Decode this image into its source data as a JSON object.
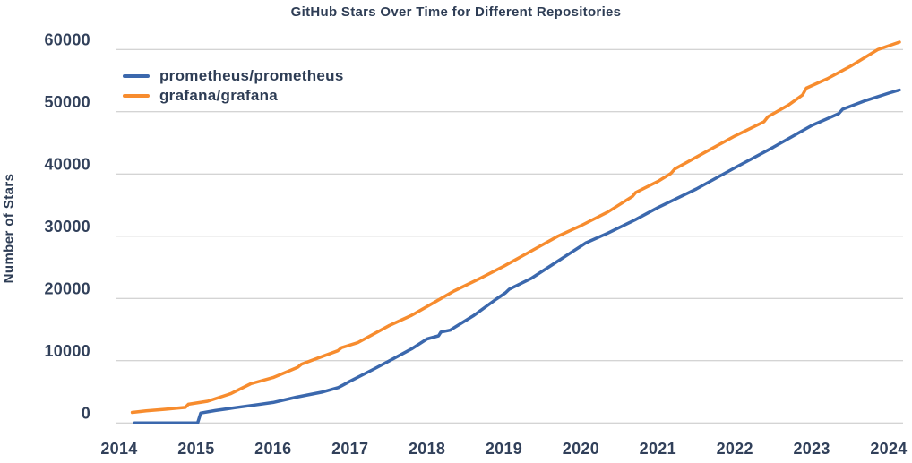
{
  "chart_data": {
    "type": "line",
    "title": "GitHub Stars Over Time for Different Repositories",
    "xlabel": "",
    "ylabel": "Number of Stars",
    "x_ticks": [
      2014,
      2015,
      2016,
      2017,
      2018,
      2019,
      2020,
      2021,
      2022,
      2023,
      2024
    ],
    "y_ticks": [
      0,
      10000,
      20000,
      30000,
      40000,
      50000,
      60000
    ],
    "x_range": [
      2014,
      2024.3
    ],
    "y_range": [
      0,
      60000
    ],
    "grid": "horizontal",
    "grid_color": "#c6c6c6",
    "legend_position": "top-left-inside",
    "text_color": "#2e3d55",
    "background_color": "#ffffff",
    "series": [
      {
        "name": "prometheus/prometheus",
        "color": "#3b68ad",
        "points": [
          [
            2014.2,
            0
          ],
          [
            2015.02,
            0
          ],
          [
            2015.06,
            1600
          ],
          [
            2015.25,
            2000
          ],
          [
            2015.5,
            2450
          ],
          [
            2015.8,
            2950
          ],
          [
            2016.0,
            3300
          ],
          [
            2016.3,
            4150
          ],
          [
            2016.65,
            5000
          ],
          [
            2016.85,
            5700
          ],
          [
            2017.0,
            6700
          ],
          [
            2017.3,
            8600
          ],
          [
            2017.53,
            10100
          ],
          [
            2017.8,
            11900
          ],
          [
            2018.0,
            13500
          ],
          [
            2018.15,
            14000
          ],
          [
            2018.18,
            14600
          ],
          [
            2018.3,
            14900
          ],
          [
            2018.6,
            17200
          ],
          [
            2018.9,
            19900
          ],
          [
            2019.02,
            20900
          ],
          [
            2019.07,
            21500
          ],
          [
            2019.35,
            23200
          ],
          [
            2019.7,
            26000
          ],
          [
            2020.0,
            28400
          ],
          [
            2020.06,
            28900
          ],
          [
            2020.35,
            30500
          ],
          [
            2020.7,
            32600
          ],
          [
            2021.0,
            34600
          ],
          [
            2021.5,
            37600
          ],
          [
            2022.0,
            41000
          ],
          [
            2022.5,
            44300
          ],
          [
            2023.0,
            47800
          ],
          [
            2023.35,
            49700
          ],
          [
            2023.4,
            50400
          ],
          [
            2023.7,
            51800
          ],
          [
            2024.0,
            53000
          ],
          [
            2024.14,
            53500
          ]
        ]
      },
      {
        "name": "grafana/grafana",
        "color": "#f78c2e",
        "points": [
          [
            2014.17,
            1700
          ],
          [
            2014.35,
            1950
          ],
          [
            2014.6,
            2200
          ],
          [
            2014.86,
            2500
          ],
          [
            2014.9,
            3000
          ],
          [
            2015.15,
            3500
          ],
          [
            2015.45,
            4700
          ],
          [
            2015.71,
            6300
          ],
          [
            2016.0,
            7300
          ],
          [
            2016.32,
            8950
          ],
          [
            2016.37,
            9450
          ],
          [
            2016.6,
            10500
          ],
          [
            2016.84,
            11600
          ],
          [
            2016.89,
            12100
          ],
          [
            2017.1,
            12900
          ],
          [
            2017.5,
            15600
          ],
          [
            2017.8,
            17300
          ],
          [
            2018.0,
            18700
          ],
          [
            2018.35,
            21200
          ],
          [
            2018.7,
            23300
          ],
          [
            2019.0,
            25200
          ],
          [
            2019.35,
            27600
          ],
          [
            2019.7,
            30000
          ],
          [
            2020.0,
            31700
          ],
          [
            2020.35,
            33900
          ],
          [
            2020.67,
            36400
          ],
          [
            2020.71,
            37000
          ],
          [
            2021.0,
            38800
          ],
          [
            2021.17,
            40100
          ],
          [
            2021.22,
            40800
          ],
          [
            2021.6,
            43400
          ],
          [
            2022.0,
            46100
          ],
          [
            2022.38,
            48400
          ],
          [
            2022.43,
            49200
          ],
          [
            2022.7,
            51100
          ],
          [
            2022.88,
            52700
          ],
          [
            2022.93,
            53800
          ],
          [
            2023.2,
            55300
          ],
          [
            2023.5,
            57300
          ],
          [
            2023.86,
            60000
          ],
          [
            2024.0,
            60600
          ],
          [
            2024.14,
            61200
          ]
        ]
      }
    ]
  }
}
